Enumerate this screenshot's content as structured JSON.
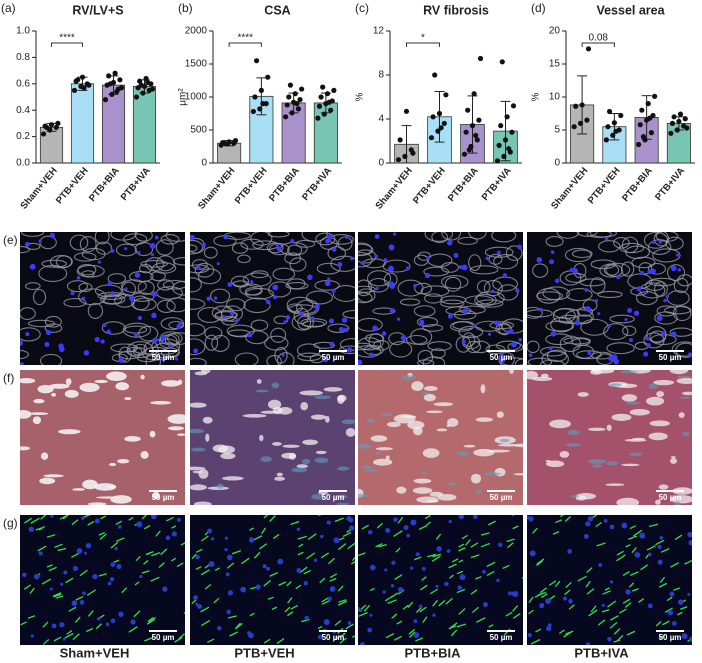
{
  "chart_data": [
    {
      "type": "bar",
      "panel": "(a)",
      "title": "RV/LV+S",
      "ylabel": null,
      "categories": [
        "Sham+VEH",
        "PTB+VEH",
        "PTB+BIA",
        "PTB+IVA"
      ],
      "colors": [
        "#b5b5b5",
        "#a9dff5",
        "#a991cc",
        "#77c5b2"
      ],
      "values": [
        0.27,
        0.6,
        0.59,
        0.58
      ],
      "errors": [
        0.03,
        0.05,
        0.07,
        0.05
      ],
      "points": [
        [
          0.22,
          0.25,
          0.27,
          0.28,
          0.29,
          0.3,
          0.27
        ],
        [
          0.55,
          0.58,
          0.6,
          0.62,
          0.65,
          0.59,
          0.63,
          0.57
        ],
        [
          0.48,
          0.52,
          0.56,
          0.59,
          0.61,
          0.63,
          0.66,
          0.68,
          0.57,
          0.6,
          0.54
        ],
        [
          0.5,
          0.53,
          0.55,
          0.57,
          0.58,
          0.6,
          0.62,
          0.64,
          0.56,
          0.59,
          0.61
        ]
      ],
      "significance": "****",
      "ylim": [
        0,
        1.0
      ],
      "yticks": [
        {
          "value": 0,
          "label": "0.0"
        },
        0.2,
        0.4,
        0.6,
        0.8,
        {
          "value": 1.0,
          "label": "1.0"
        }
      ]
    },
    {
      "type": "bar",
      "panel": "(b)",
      "title": "CSA",
      "ylabel": "μm²",
      "categories": [
        "Sham+VEH",
        "PTB+VEH",
        "PTB+BIA",
        "PTB+IVA"
      ],
      "colors": [
        "#b5b5b5",
        "#a9dff5",
        "#a991cc",
        "#77c5b2"
      ],
      "values": [
        300,
        1010,
        910,
        910
      ],
      "errors": [
        40,
        280,
        150,
        150
      ],
      "points": [
        [
          270,
          290,
          300,
          310,
          320,
          340,
          300
        ],
        [
          780,
          820,
          900,
          1000,
          1100,
          1300,
          1550,
          900
        ],
        [
          700,
          760,
          820,
          880,
          920,
          960,
          1000,
          1050,
          1120,
          1180,
          900
        ],
        [
          680,
          740,
          800,
          860,
          900,
          940,
          1000,
          1050,
          1100,
          1150,
          920
        ]
      ],
      "significance": "****",
      "ylim": [
        0,
        2000
      ],
      "yticks": [
        0,
        500,
        1000,
        1500,
        2000
      ]
    },
    {
      "type": "bar",
      "panel": "(c)",
      "title": "RV fibrosis",
      "ylabel": "%",
      "categories": [
        "Sham+VEH",
        "PTB+VEH",
        "PTB+BIA",
        "PTB+IVA"
      ],
      "colors": [
        "#b5b5b5",
        "#a9dff5",
        "#a991cc",
        "#77c5b2"
      ],
      "values": [
        1.7,
        4.2,
        3.5,
        2.9
      ],
      "errors": [
        1.7,
        2.3,
        2.6,
        2.7
      ],
      "points": [
        [
          0.3,
          0.6,
          1.2,
          2.1,
          4.7,
          0.9
        ],
        [
          2.3,
          2.9,
          3.6,
          4.2,
          4.5,
          6.2,
          8.0,
          3.2
        ],
        [
          0.8,
          1.5,
          2.1,
          2.8,
          3.4,
          3.9,
          4.8,
          6.3,
          9.5,
          1.2,
          2.5
        ],
        [
          0.2,
          0.6,
          1.0,
          1.6,
          2.1,
          2.8,
          3.4,
          4.2,
          5.2,
          9.2,
          1.3
        ]
      ],
      "significance": "*",
      "ylim": [
        0,
        12
      ],
      "yticks": [
        0,
        4,
        8,
        12
      ]
    },
    {
      "type": "bar",
      "panel": "(d)",
      "title": "Vessel area",
      "ylabel": "%",
      "categories": [
        "Sham+VEH",
        "PTB+VEH",
        "PTB+BIA",
        "PTB+IVA"
      ],
      "colors": [
        "#b5b5b5",
        "#a9dff5",
        "#a991cc",
        "#77c5b2"
      ],
      "values": [
        8.8,
        5.5,
        6.9,
        6.0
      ],
      "errors": [
        4.4,
        2.0,
        3.3,
        1.0
      ],
      "points": [
        [
          5.5,
          6.0,
          6.5,
          8.6,
          8.8,
          17.3
        ],
        [
          3.5,
          4.2,
          5.0,
          5.5,
          6.1,
          7.2,
          7.8,
          4.8
        ],
        [
          2.8,
          3.5,
          4.6,
          5.8,
          6.5,
          7.2,
          8.0,
          9.0,
          10.1,
          4.0,
          6.8
        ],
        [
          4.5,
          5.0,
          5.6,
          6.0,
          6.3,
          6.7,
          7.0,
          7.4,
          5.3
        ]
      ],
      "significance": "0.08",
      "ylim": [
        0,
        20
      ],
      "yticks": [
        0,
        5,
        10,
        15,
        20
      ]
    }
  ],
  "images": {
    "rows": [
      {
        "label": "(e)",
        "scale": [
          "50 µm",
          "50 µm",
          "50 µm",
          "50 µm"
        ]
      },
      {
        "label": "(f)",
        "scale": [
          "50 µm",
          "50 µm",
          "50 µm",
          "50 µm"
        ]
      },
      {
        "label": "(g)",
        "scale": [
          "50 µm",
          "50 µm",
          "50 µm",
          "50 µm"
        ]
      }
    ],
    "columns": [
      "Sham+VEH",
      "PTB+VEH",
      "PTB+BIA",
      "PTB+IVA"
    ]
  }
}
